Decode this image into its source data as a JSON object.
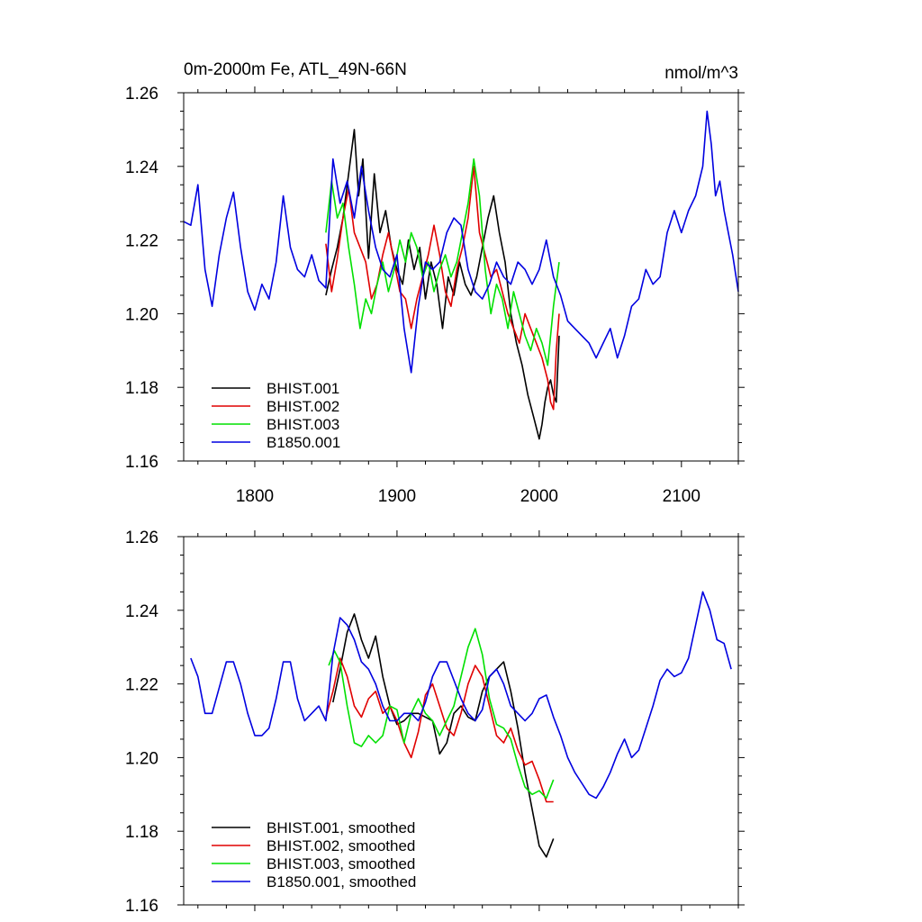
{
  "chart_data": [
    {
      "type": "line",
      "title": "0m-2000m Fe, ATL_49N-66N",
      "units": "nmol/m^3",
      "xlim": [
        1750,
        2140
      ],
      "ylim": [
        1.16,
        1.26
      ],
      "xticks": [
        1800,
        1900,
        2000,
        2100
      ],
      "xtick_labels": [
        "1800",
        "1900",
        "2000",
        "2100"
      ],
      "yticks": [
        1.16,
        1.18,
        1.2,
        1.22,
        1.24,
        1.26
      ],
      "ytick_labels": [
        "1.16",
        "1.18",
        "1.20",
        "1.22",
        "1.24",
        "1.26"
      ],
      "legend_position": "bottom-left",
      "series": [
        {
          "name": "BHIST.001",
          "color": "#000000",
          "x": [
            1850,
            1854,
            1858,
            1862,
            1866,
            1870,
            1873,
            1876,
            1880,
            1884,
            1888,
            1892,
            1896,
            1900,
            1904,
            1908,
            1912,
            1916,
            1920,
            1924,
            1928,
            1932,
            1936,
            1940,
            1944,
            1948,
            1952,
            1956,
            1960,
            1964,
            1968,
            1972,
            1976,
            1980,
            1984,
            1988,
            1992,
            1996,
            2000,
            2002,
            2004,
            2006,
            2008,
            2010,
            2012,
            2014
          ],
          "values": [
            1.205,
            1.212,
            1.218,
            1.226,
            1.238,
            1.25,
            1.232,
            1.242,
            1.215,
            1.238,
            1.222,
            1.228,
            1.218,
            1.212,
            1.208,
            1.22,
            1.212,
            1.218,
            1.204,
            1.214,
            1.208,
            1.196,
            1.21,
            1.205,
            1.214,
            1.208,
            1.205,
            1.21,
            1.218,
            1.226,
            1.232,
            1.222,
            1.214,
            1.2,
            1.192,
            1.186,
            1.178,
            1.172,
            1.166,
            1.17,
            1.176,
            1.18,
            1.182,
            1.178,
            1.176,
            1.194
          ]
        },
        {
          "name": "BHIST.002",
          "color": "#e00000",
          "x": [
            1850,
            1854,
            1858,
            1862,
            1866,
            1870,
            1874,
            1878,
            1882,
            1886,
            1890,
            1894,
            1898,
            1902,
            1906,
            1910,
            1914,
            1918,
            1922,
            1926,
            1930,
            1934,
            1938,
            1942,
            1946,
            1950,
            1954,
            1958,
            1962,
            1966,
            1970,
            1974,
            1978,
            1982,
            1986,
            1990,
            1994,
            1998,
            2002,
            2006,
            2008,
            2010,
            2012,
            2014
          ],
          "values": [
            1.219,
            1.206,
            1.215,
            1.226,
            1.234,
            1.222,
            1.218,
            1.214,
            1.204,
            1.208,
            1.216,
            1.222,
            1.214,
            1.206,
            1.204,
            1.196,
            1.204,
            1.21,
            1.216,
            1.224,
            1.216,
            1.206,
            1.202,
            1.212,
            1.218,
            1.226,
            1.24,
            1.222,
            1.216,
            1.21,
            1.212,
            1.206,
            1.2,
            1.196,
            1.192,
            1.2,
            1.196,
            1.192,
            1.188,
            1.182,
            1.176,
            1.174,
            1.19,
            1.2
          ]
        },
        {
          "name": "BHIST.003",
          "color": "#00e000",
          "x": [
            1850,
            1854,
            1858,
            1862,
            1866,
            1870,
            1874,
            1878,
            1882,
            1886,
            1890,
            1894,
            1898,
            1902,
            1906,
            1910,
            1914,
            1918,
            1922,
            1926,
            1930,
            1934,
            1938,
            1942,
            1946,
            1950,
            1954,
            1958,
            1962,
            1966,
            1970,
            1974,
            1978,
            1982,
            1986,
            1990,
            1994,
            1998,
            2002,
            2006,
            2010,
            2014
          ],
          "values": [
            1.222,
            1.236,
            1.226,
            1.23,
            1.218,
            1.208,
            1.196,
            1.204,
            1.2,
            1.208,
            1.214,
            1.206,
            1.212,
            1.22,
            1.214,
            1.222,
            1.218,
            1.21,
            1.214,
            1.206,
            1.212,
            1.216,
            1.21,
            1.214,
            1.222,
            1.23,
            1.242,
            1.232,
            1.212,
            1.2,
            1.208,
            1.204,
            1.196,
            1.206,
            1.2,
            1.194,
            1.19,
            1.196,
            1.192,
            1.186,
            1.202,
            1.214
          ]
        },
        {
          "name": "B1850.001",
          "color": "#0000e0",
          "x": [
            1750,
            1755,
            1760,
            1765,
            1770,
            1775,
            1780,
            1785,
            1790,
            1795,
            1800,
            1805,
            1810,
            1815,
            1820,
            1825,
            1830,
            1835,
            1840,
            1845,
            1850,
            1855,
            1860,
            1865,
            1870,
            1875,
            1880,
            1885,
            1890,
            1895,
            1900,
            1905,
            1910,
            1915,
            1920,
            1925,
            1930,
            1935,
            1940,
            1945,
            1950,
            1955,
            1960,
            1965,
            1970,
            1975,
            1980,
            1985,
            1990,
            1995,
            2000,
            2005,
            2010,
            2015,
            2020,
            2025,
            2030,
            2035,
            2040,
            2045,
            2050,
            2055,
            2060,
            2065,
            2070,
            2075,
            2080,
            2085,
            2090,
            2095,
            2100,
            2105,
            2110,
            2115,
            2118,
            2121,
            2124,
            2127,
            2130,
            2133,
            2136,
            2140
          ],
          "values": [
            1.225,
            1.224,
            1.235,
            1.212,
            1.202,
            1.216,
            1.226,
            1.233,
            1.218,
            1.206,
            1.201,
            1.208,
            1.204,
            1.214,
            1.232,
            1.218,
            1.212,
            1.21,
            1.216,
            1.209,
            1.207,
            1.242,
            1.23,
            1.236,
            1.226,
            1.24,
            1.228,
            1.218,
            1.212,
            1.21,
            1.216,
            1.196,
            1.184,
            1.202,
            1.214,
            1.212,
            1.214,
            1.222,
            1.226,
            1.224,
            1.212,
            1.206,
            1.204,
            1.208,
            1.214,
            1.21,
            1.208,
            1.214,
            1.212,
            1.208,
            1.212,
            1.22,
            1.21,
            1.205,
            1.198,
            1.196,
            1.194,
            1.192,
            1.188,
            1.192,
            1.196,
            1.188,
            1.194,
            1.202,
            1.204,
            1.212,
            1.208,
            1.21,
            1.222,
            1.228,
            1.222,
            1.228,
            1.232,
            1.24,
            1.255,
            1.246,
            1.232,
            1.236,
            1.228,
            1.222,
            1.216,
            1.206
          ]
        }
      ]
    },
    {
      "type": "line",
      "title": "",
      "xlim": [
        1750,
        2140
      ],
      "ylim": [
        1.16,
        1.26
      ],
      "xticks": [
        1800,
        1900,
        2000,
        2100
      ],
      "yticks": [
        1.16,
        1.18,
        1.2,
        1.22,
        1.24,
        1.26
      ],
      "ytick_labels": [
        "1.16",
        "1.18",
        "1.20",
        "1.22",
        "1.24",
        "1.26"
      ],
      "legend_position": "bottom-left",
      "series": [
        {
          "name": "BHIST.001, smoothed",
          "color": "#000000",
          "x": [
            1855,
            1860,
            1865,
            1870,
            1875,
            1880,
            1885,
            1890,
            1895,
            1900,
            1905,
            1910,
            1915,
            1920,
            1925,
            1930,
            1935,
            1940,
            1945,
            1950,
            1955,
            1960,
            1965,
            1970,
            1975,
            1980,
            1985,
            1990,
            1995,
            2000,
            2005,
            2010
          ],
          "values": [
            1.215,
            1.224,
            1.234,
            1.239,
            1.232,
            1.227,
            1.233,
            1.222,
            1.214,
            1.209,
            1.21,
            1.212,
            1.212,
            1.211,
            1.21,
            1.201,
            1.204,
            1.212,
            1.214,
            1.211,
            1.21,
            1.218,
            1.222,
            1.224,
            1.226,
            1.218,
            1.208,
            1.196,
            1.186,
            1.176,
            1.173,
            1.178
          ]
        },
        {
          "name": "BHIST.002, smoothed",
          "color": "#e00000",
          "x": [
            1850,
            1855,
            1860,
            1865,
            1870,
            1875,
            1880,
            1885,
            1890,
            1895,
            1900,
            1905,
            1910,
            1915,
            1920,
            1925,
            1930,
            1935,
            1940,
            1945,
            1950,
            1955,
            1960,
            1965,
            1970,
            1975,
            1980,
            1985,
            1990,
            1995,
            2000,
            2005,
            2010
          ],
          "values": [
            1.211,
            1.218,
            1.227,
            1.222,
            1.214,
            1.211,
            1.216,
            1.218,
            1.212,
            1.214,
            1.21,
            1.204,
            1.2,
            1.207,
            1.217,
            1.22,
            1.214,
            1.208,
            1.206,
            1.212,
            1.22,
            1.225,
            1.222,
            1.214,
            1.206,
            1.204,
            1.208,
            1.202,
            1.198,
            1.199,
            1.194,
            1.188,
            1.188
          ]
        },
        {
          "name": "BHIST.003, smoothed",
          "color": "#00e000",
          "x": [
            1852,
            1856,
            1860,
            1865,
            1870,
            1875,
            1880,
            1885,
            1890,
            1895,
            1900,
            1905,
            1910,
            1915,
            1920,
            1925,
            1930,
            1935,
            1940,
            1945,
            1950,
            1955,
            1960,
            1965,
            1970,
            1975,
            1980,
            1985,
            1990,
            1995,
            2000,
            2005,
            2010
          ],
          "values": [
            1.225,
            1.229,
            1.226,
            1.214,
            1.204,
            1.203,
            1.206,
            1.204,
            1.206,
            1.214,
            1.213,
            1.204,
            1.212,
            1.216,
            1.212,
            1.21,
            1.206,
            1.21,
            1.214,
            1.222,
            1.23,
            1.235,
            1.228,
            1.216,
            1.209,
            1.208,
            1.205,
            1.198,
            1.192,
            1.19,
            1.191,
            1.189,
            1.194
          ]
        },
        {
          "name": "B1850.001, smoothed",
          "color": "#0000e0",
          "x": [
            1755,
            1760,
            1765,
            1770,
            1775,
            1780,
            1785,
            1790,
            1795,
            1800,
            1805,
            1810,
            1815,
            1820,
            1825,
            1830,
            1835,
            1840,
            1845,
            1850,
            1855,
            1860,
            1865,
            1870,
            1875,
            1880,
            1885,
            1890,
            1895,
            1900,
            1905,
            1910,
            1915,
            1920,
            1925,
            1930,
            1935,
            1940,
            1945,
            1950,
            1955,
            1960,
            1965,
            1970,
            1975,
            1980,
            1985,
            1990,
            1995,
            2000,
            2005,
            2010,
            2015,
            2020,
            2025,
            2030,
            2035,
            2040,
            2045,
            2050,
            2055,
            2060,
            2065,
            2070,
            2075,
            2080,
            2085,
            2090,
            2095,
            2100,
            2105,
            2110,
            2115,
            2120,
            2125,
            2130,
            2135
          ],
          "values": [
            1.227,
            1.222,
            1.212,
            1.212,
            1.219,
            1.226,
            1.226,
            1.22,
            1.212,
            1.206,
            1.206,
            1.208,
            1.216,
            1.226,
            1.226,
            1.216,
            1.21,
            1.212,
            1.214,
            1.21,
            1.228,
            1.238,
            1.236,
            1.232,
            1.226,
            1.224,
            1.22,
            1.214,
            1.21,
            1.21,
            1.212,
            1.212,
            1.21,
            1.215,
            1.222,
            1.226,
            1.226,
            1.221,
            1.216,
            1.212,
            1.21,
            1.213,
            1.222,
            1.224,
            1.22,
            1.214,
            1.212,
            1.21,
            1.212,
            1.216,
            1.217,
            1.211,
            1.206,
            1.2,
            1.196,
            1.193,
            1.19,
            1.189,
            1.192,
            1.196,
            1.201,
            1.205,
            1.2,
            1.202,
            1.208,
            1.214,
            1.221,
            1.224,
            1.222,
            1.223,
            1.227,
            1.236,
            1.245,
            1.24,
            1.232,
            1.231,
            1.224
          ]
        }
      ]
    }
  ]
}
